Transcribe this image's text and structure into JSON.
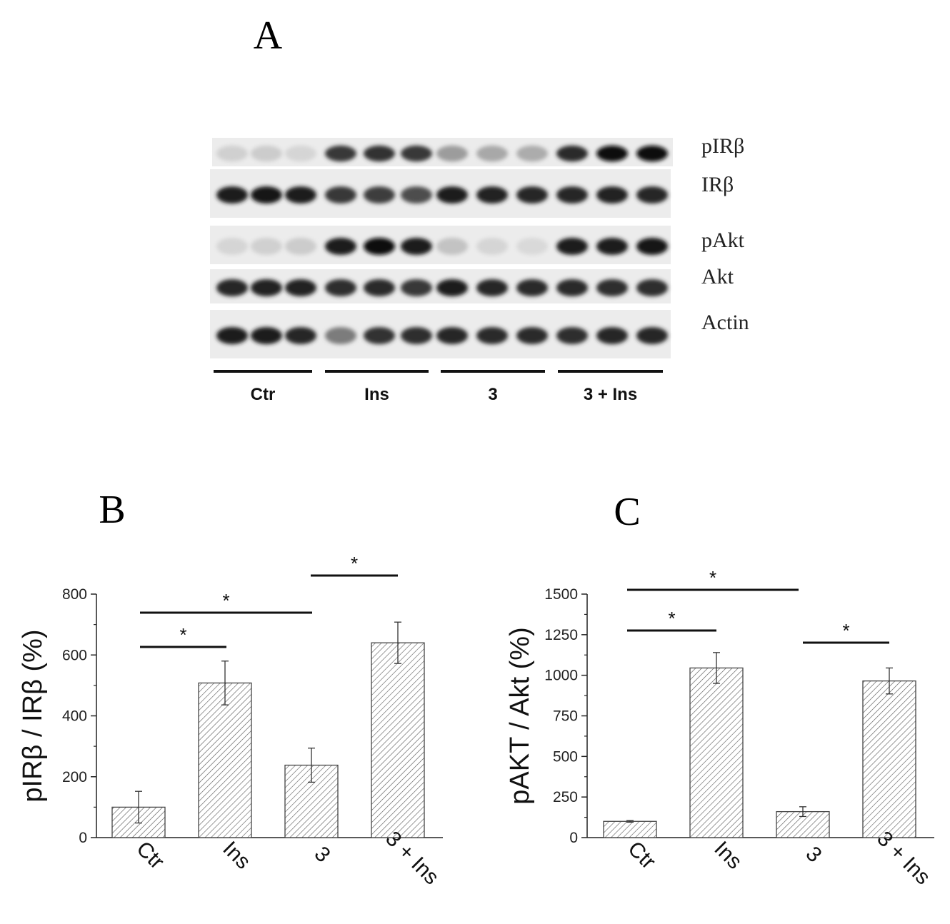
{
  "panels": {
    "a": "A",
    "b": "B",
    "c": "C"
  },
  "blot": {
    "rows": [
      {
        "label": "pIRβ",
        "intensity": [
          0.12,
          0.14,
          0.1,
          0.8,
          0.82,
          0.8,
          0.35,
          0.3,
          0.28,
          0.85,
          0.98,
          0.99
        ]
      },
      {
        "label": "IRβ",
        "intensity": [
          0.92,
          0.95,
          0.92,
          0.8,
          0.78,
          0.7,
          0.92,
          0.9,
          0.88,
          0.88,
          0.9,
          0.88
        ]
      },
      {
        "label": "pAkt",
        "intensity": [
          0.1,
          0.12,
          0.14,
          0.92,
          0.97,
          0.92,
          0.18,
          0.1,
          0.08,
          0.92,
          0.92,
          0.96
        ]
      },
      {
        "label": "Akt",
        "intensity": [
          0.88,
          0.9,
          0.9,
          0.84,
          0.86,
          0.8,
          0.92,
          0.88,
          0.85,
          0.86,
          0.84,
          0.84
        ]
      },
      {
        "label": "Actin",
        "intensity": [
          0.92,
          0.92,
          0.88,
          0.5,
          0.82,
          0.84,
          0.88,
          0.86,
          0.86,
          0.84,
          0.88,
          0.88
        ]
      }
    ],
    "groups": [
      "Ctr",
      "Ins",
      "3",
      "3 + Ins"
    ]
  },
  "chart_data": [
    {
      "type": "bar",
      "panel": "B",
      "categories": [
        "Ctr",
        "Ins",
        "3",
        "3 + Ins"
      ],
      "values": [
        100,
        508,
        238,
        640
      ],
      "errors": [
        52,
        72,
        56,
        68
      ],
      "ylabel": "pIRβ / IRβ (%)",
      "ylim": [
        0,
        800
      ],
      "yticks": [
        0,
        200,
        400,
        600,
        800
      ],
      "significance": [
        {
          "from": "Ctr",
          "to": "Ins",
          "label": "*"
        },
        {
          "from": "Ctr",
          "to": "3",
          "label": "*"
        },
        {
          "from": "3",
          "to": "3 + Ins",
          "label": "*"
        }
      ]
    },
    {
      "type": "bar",
      "panel": "C",
      "categories": [
        "Ctr",
        "Ins",
        "3",
        "3 + Ins"
      ],
      "values": [
        100,
        1045,
        160,
        965
      ],
      "errors": [
        5,
        95,
        30,
        80
      ],
      "ylabel": "pAKT / Akt (%)",
      "ylim": [
        0,
        1500
      ],
      "yticks": [
        0,
        250,
        500,
        750,
        1000,
        1250,
        1500
      ],
      "significance": [
        {
          "from": "Ctr",
          "to": "Ins",
          "label": "*"
        },
        {
          "from": "Ctr",
          "to": "3",
          "label": "*"
        },
        {
          "from": "3",
          "to": "3 + Ins",
          "label": "*"
        }
      ]
    }
  ]
}
